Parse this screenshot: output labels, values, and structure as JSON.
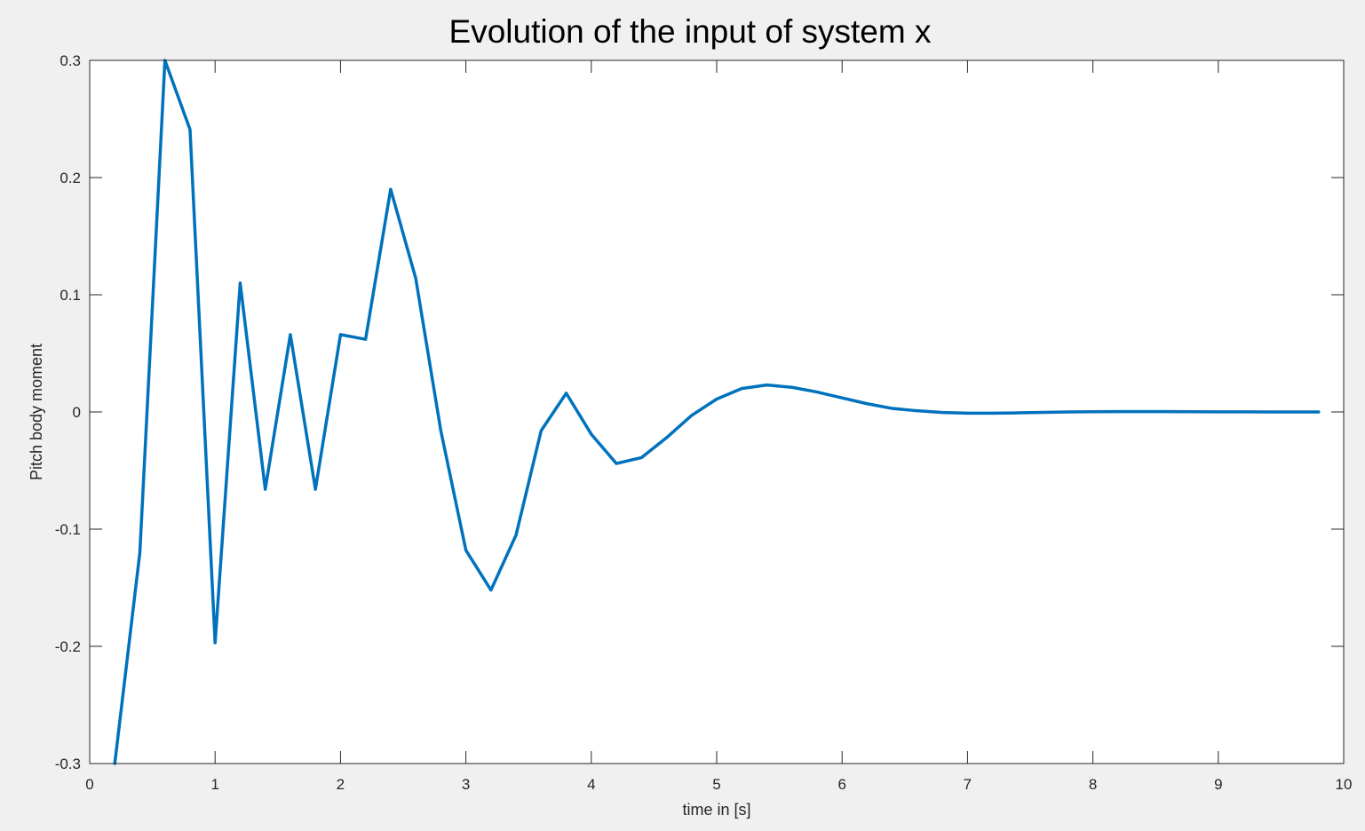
{
  "chart_data": {
    "type": "line",
    "title": "Evolution of the input of system x",
    "xlabel": "time in [s]",
    "ylabel": "Pitch body moment",
    "xlim": [
      0,
      10
    ],
    "ylim": [
      -0.3,
      0.3
    ],
    "xticks": [
      "0",
      "1",
      "2",
      "3",
      "4",
      "5",
      "6",
      "7",
      "8",
      "9",
      "10"
    ],
    "yticks": [
      "-0.3",
      "-0.2",
      "-0.1",
      "0",
      "0.1",
      "0.2",
      "0.3"
    ],
    "grid": false,
    "legend": "none",
    "series": [
      {
        "color": "#0072bd",
        "x": [
          0.2,
          0.4,
          0.6,
          0.8,
          1.0,
          1.2,
          1.4,
          1.6,
          1.8,
          2.0,
          2.2,
          2.4,
          2.6,
          2.8,
          3.0,
          3.2,
          3.4,
          3.6,
          3.8,
          4.0,
          4.2,
          4.4,
          4.6,
          4.8,
          5.0,
          5.2,
          5.4,
          5.6,
          5.8,
          6.0,
          6.2,
          6.4,
          6.6,
          6.8,
          7.0,
          7.2,
          7.4,
          7.6,
          7.8,
          8.0,
          8.2,
          8.4,
          8.6,
          8.8,
          9.0,
          9.2,
          9.4,
          9.6,
          9.8
        ],
        "y": [
          -0.3,
          -0.12,
          0.3,
          0.241,
          -0.197,
          0.11,
          -0.066,
          0.066,
          -0.066,
          0.066,
          0.062,
          0.19,
          0.114,
          -0.016,
          -0.118,
          -0.152,
          -0.105,
          -0.016,
          0.016,
          -0.019,
          -0.044,
          -0.039,
          -0.022,
          -0.003,
          0.011,
          0.02,
          0.023,
          0.021,
          0.017,
          0.012,
          0.007,
          0.003,
          0.001,
          -0.0005,
          -0.001,
          -0.001,
          -0.0008,
          -0.0004,
          0.0,
          0.0002,
          0.0003,
          0.0003,
          0.0003,
          0.0002,
          0.0001,
          0.0001,
          0.0,
          0.0,
          0.0
        ]
      }
    ]
  }
}
